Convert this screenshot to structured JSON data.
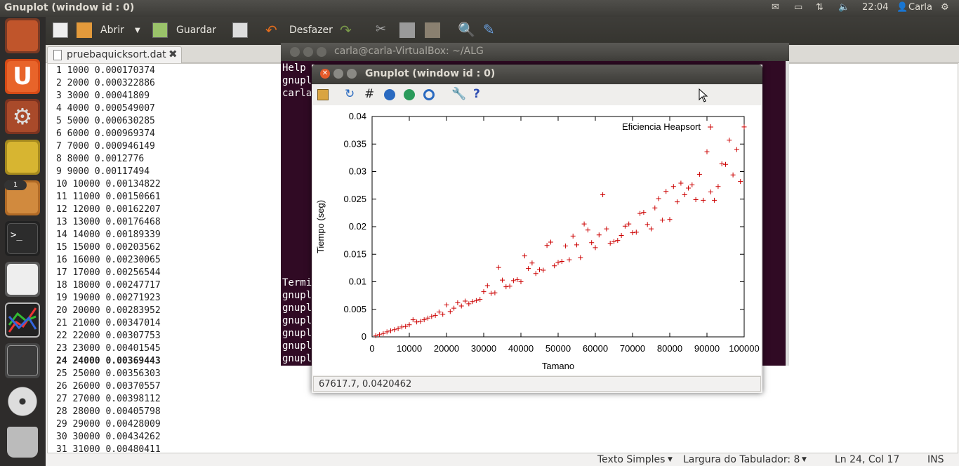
{
  "top_panel": {
    "title": "Gnuplot (window id : 0)",
    "time": "22:04",
    "user": "Carla",
    "icons": [
      "mail-icon",
      "battery-icon",
      "network-icon",
      "volume-icon",
      "user-icon",
      "gear-icon"
    ]
  },
  "launcher": {
    "items": [
      "ubuntu-software-center",
      "ubuntu-one",
      "system-settings",
      "ubuntu-teapot",
      "files",
      "terminal",
      "text-editor",
      "gnuplot",
      "workspace-switcher",
      "cd-drive",
      "trash"
    ],
    "files_badge": "1"
  },
  "gedit": {
    "toolbar": {
      "open_label": "Abrir",
      "save_label": "Guardar",
      "undo_label": "Desfazer"
    },
    "tab": {
      "filename": "pruebaquicksort.dat"
    },
    "lines": [
      "1 1000 0.000170374",
      "2 2000 0.000322886",
      "3 3000 0.00041809",
      "4 4000 0.000549007",
      "5 5000 0.000630285",
      "6 6000 0.000969374",
      "7 7000 0.000946149",
      "8 8000 0.0012776",
      "9 9000 0.00117494",
      "10 10000 0.00134822",
      "11 11000 0.00150661",
      "12 12000 0.00162207",
      "13 13000 0.00176468",
      "14 14000 0.00189339",
      "15 15000 0.00203562",
      "16 16000 0.00230065",
      "17 17000 0.00256544",
      "18 18000 0.00247717",
      "19 19000 0.00271923",
      "20 20000 0.00283952",
      "21 21000 0.00347014",
      "22 22000 0.00307753",
      "23 23000 0.00401545",
      "24 24000 0.00369443",
      "25 25000 0.00356303",
      "26 26000 0.00370557",
      "27 27000 0.00398112",
      "28 28000 0.00405798",
      "29 29000 0.00428009",
      "30 30000 0.00434262",
      "31 31000 0.00480411"
    ],
    "status": {
      "syntax": "Texto Simples",
      "tab_width": "Largura do Tabulador:  8",
      "position": "Ln 24, Col 17",
      "mode": "INS"
    }
  },
  "terminal": {
    "title": "carla@carla-VirtualBox: ~/ALG",
    "lines_top": [
      "Help",
      "gnupl",
      "carla"
    ],
    "lines_bottom": [
      "Termi",
      "gnupl",
      "gnupl",
      "gnupl",
      "gnupl",
      "gnupl",
      "gnupl"
    ]
  },
  "gnuplot": {
    "title": "Gnuplot (window id : 0)",
    "status_text": "67617.7,  0.0420462",
    "toolbar_icons": [
      "copy-to-clipboard-icon",
      "replot-icon",
      "grid-icon",
      "zoom-previous-icon",
      "zoom-next-icon",
      "autoscale-icon",
      "settings-icon",
      "help-icon"
    ]
  },
  "chart_data": {
    "type": "scatter",
    "title": "",
    "legend": "Eficiencia Heapsort",
    "legend_position": "top-right",
    "xlabel": "Tamano",
    "ylabel": "Tiempo (seg)",
    "xlim": [
      0,
      100000
    ],
    "ylim": [
      0,
      0.04
    ],
    "xticks": [
      "0",
      "10000",
      "20000",
      "30000",
      "40000",
      "50000",
      "60000",
      "70000",
      "80000",
      "90000",
      "100000"
    ],
    "yticks": [
      "0",
      "0.005",
      "0.01",
      "0.015",
      "0.02",
      "0.025",
      "0.03",
      "0.035",
      "0.04"
    ],
    "marker": "+",
    "color": "#cc0000",
    "x": [
      1000,
      2000,
      3000,
      4000,
      5000,
      6000,
      7000,
      8000,
      9000,
      10000,
      11000,
      12000,
      13000,
      14000,
      15000,
      16000,
      17000,
      18000,
      19000,
      20000,
      21000,
      22000,
      23000,
      24000,
      25000,
      26000,
      27000,
      28000,
      29000,
      30000,
      31000,
      32000,
      33000,
      34000,
      35000,
      36000,
      37000,
      38000,
      39000,
      40000,
      41000,
      42000,
      43000,
      44000,
      45000,
      46000,
      47000,
      48000,
      49000,
      50000,
      51000,
      52000,
      53000,
      54000,
      55000,
      56000,
      57000,
      58000,
      59000,
      60000,
      61000,
      62000,
      63000,
      64000,
      65000,
      66000,
      67000,
      68000,
      69000,
      70000,
      71000,
      72000,
      73000,
      74000,
      75000,
      76000,
      77000,
      78000,
      79000,
      80000,
      81000,
      82000,
      83000,
      84000,
      85000,
      86000,
      87000,
      88000,
      89000,
      90000,
      91000,
      92000,
      93000,
      94000,
      95000,
      96000,
      97000,
      98000,
      99000,
      100000
    ],
    "y": [
      0.0002,
      0.0004,
      0.0006,
      0.0009,
      0.0011,
      0.0013,
      0.0015,
      0.0018,
      0.0019,
      0.0022,
      0.0031,
      0.0027,
      0.0028,
      0.0031,
      0.0034,
      0.0037,
      0.0039,
      0.0045,
      0.0041,
      0.0058,
      0.0046,
      0.0052,
      0.0062,
      0.0056,
      0.0065,
      0.006,
      0.0064,
      0.0066,
      0.0068,
      0.0082,
      0.0093,
      0.0079,
      0.008,
      0.0126,
      0.0103,
      0.0091,
      0.0092,
      0.0102,
      0.0104,
      0.01,
      0.0147,
      0.0124,
      0.0134,
      0.0115,
      0.0122,
      0.0121,
      0.0166,
      0.0172,
      0.0129,
      0.0135,
      0.0137,
      0.0165,
      0.014,
      0.0183,
      0.0167,
      0.0144,
      0.0205,
      0.0194,
      0.0171,
      0.0162,
      0.0185,
      0.0258,
      0.0196,
      0.017,
      0.0173,
      0.0175,
      0.0184,
      0.0201,
      0.0205,
      0.0189,
      0.019,
      0.0224,
      0.0226,
      0.0204,
      0.0196,
      0.0234,
      0.0251,
      0.0212,
      0.0264,
      0.0213,
      0.0273,
      0.0245,
      0.0279,
      0.0258,
      0.027,
      0.0276,
      0.0249,
      0.0295,
      0.0248,
      0.0336,
      0.0263,
      0.0248,
      0.0273,
      0.0314,
      0.0313,
      0.0357,
      0.0294,
      0.034,
      0.0282,
      0.0381
    ]
  }
}
